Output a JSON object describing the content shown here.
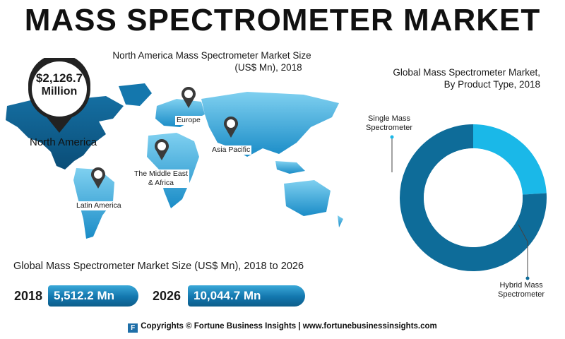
{
  "title": "MASS SPECTROMETER MARKET",
  "north_america": {
    "subtitle_line1": "North America Mass Spectrometer Market Size",
    "subtitle_line2": "(US$ Mn), 2018",
    "value": "$2,126.7",
    "unit": "Million",
    "label": "North America"
  },
  "regions": {
    "europe": "Europe",
    "asia_pacific": "Asia Pacific",
    "mea_line1": "The Middle East",
    "mea_line2": "& Africa",
    "latin_america": "Latin America"
  },
  "market_size": {
    "subtitle": "Global Mass Spectrometer Market Size (US$ Mn), 2018 to 2026",
    "year_2018": "2018",
    "value_2018": "5,512.2 Mn",
    "year_2026": "2026",
    "value_2026": "10,044.7 Mn"
  },
  "chart_data": {
    "type": "pie",
    "title": "Global Mass Spectrometer Market, By Product Type, 2018",
    "labels": [
      "Single Mass Spectrometer",
      "Hybrid Mass Spectrometer"
    ],
    "values": [
      24,
      76
    ],
    "colors": [
      "#1ab8e8",
      "#0e6c99"
    ]
  },
  "pie_labels": {
    "single_line1": "Single Mass",
    "single_line2": "Spectrometer",
    "hybrid_line1": "Hybrid Mass",
    "hybrid_line2": "Spectrometer"
  },
  "pie_title_line1": "Global Mass Spectrometer Market,",
  "pie_title_line2": "By Product Type, 2018",
  "footer": {
    "logo_letter": "F",
    "text": "Copyrights © Fortune Business Insights | www.fortunebusinessinsights.com"
  },
  "colors": {
    "map_light": "#2fa3d6",
    "map_dark": "#0f5f8c",
    "accent": "#1276ad"
  }
}
